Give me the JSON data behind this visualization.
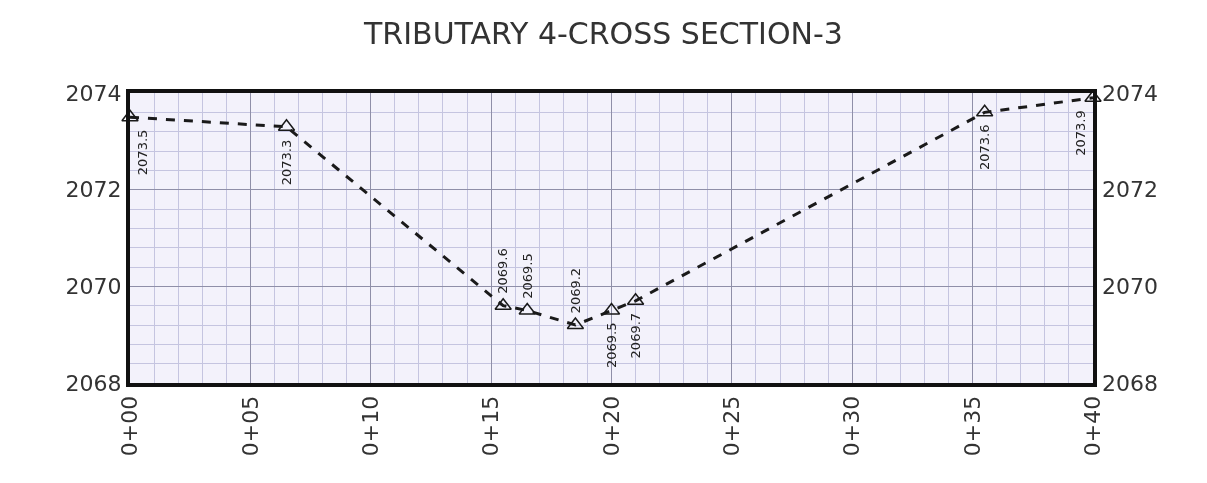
{
  "chart_data": {
    "type": "line",
    "title": "TRIBUTARY 4-CROSS SECTION-3",
    "categories": [
      "0+00",
      null,
      null,
      null,
      null,
      null,
      null,
      null,
      null,
      null,
      "0+05",
      null,
      null,
      null,
      null,
      null,
      null,
      null,
      null,
      null,
      "0+10",
      null,
      null,
      null,
      null,
      null,
      null,
      null,
      null,
      null,
      "0+15",
      null,
      null,
      null,
      null,
      null,
      null,
      null,
      null,
      null,
      "0+20",
      null,
      null,
      null,
      null,
      null,
      null,
      null,
      null,
      null,
      "0+25",
      null,
      null,
      null,
      null,
      null,
      null,
      null,
      null,
      null,
      "0+30",
      null,
      null,
      null,
      null,
      null,
      null,
      null,
      null,
      null,
      "0+35",
      null,
      null,
      null,
      null,
      null,
      null,
      null,
      null,
      null,
      "0+40"
    ],
    "series": [
      {
        "color": "#1a1a1a",
        "values": [
          2073.5,
          null,
          null,
          null,
          null,
          null,
          null,
          null,
          null,
          null,
          null,
          null,
          null,
          2073.3,
          null,
          null,
          null,
          null,
          null,
          null,
          null,
          null,
          null,
          null,
          null,
          null,
          null,
          null,
          null,
          null,
          null,
          2069.6,
          null,
          2069.5,
          null,
          null,
          null,
          2069.2,
          null,
          null,
          2069.5,
          null,
          2069.7,
          null,
          null,
          null,
          null,
          null,
          null,
          null,
          null,
          null,
          null,
          null,
          null,
          null,
          null,
          null,
          null,
          null,
          null,
          null,
          null,
          null,
          null,
          null,
          null,
          null,
          null,
          null,
          null,
          2073.6,
          null,
          null,
          null,
          null,
          null,
          null,
          null,
          null,
          2073.9
        ]
      }
    ],
    "data_labels": true,
    "marker": "triangle",
    "line_style": "dashed",
    "grid": true,
    "legend": false,
    "ylim": [
      2068,
      2074
    ],
    "yticks": [
      2068,
      2070,
      2072,
      2074
    ],
    "y2lim": [
      2068,
      2074
    ],
    "y2ticks": [
      2068,
      2070,
      2072,
      2074
    ]
  }
}
